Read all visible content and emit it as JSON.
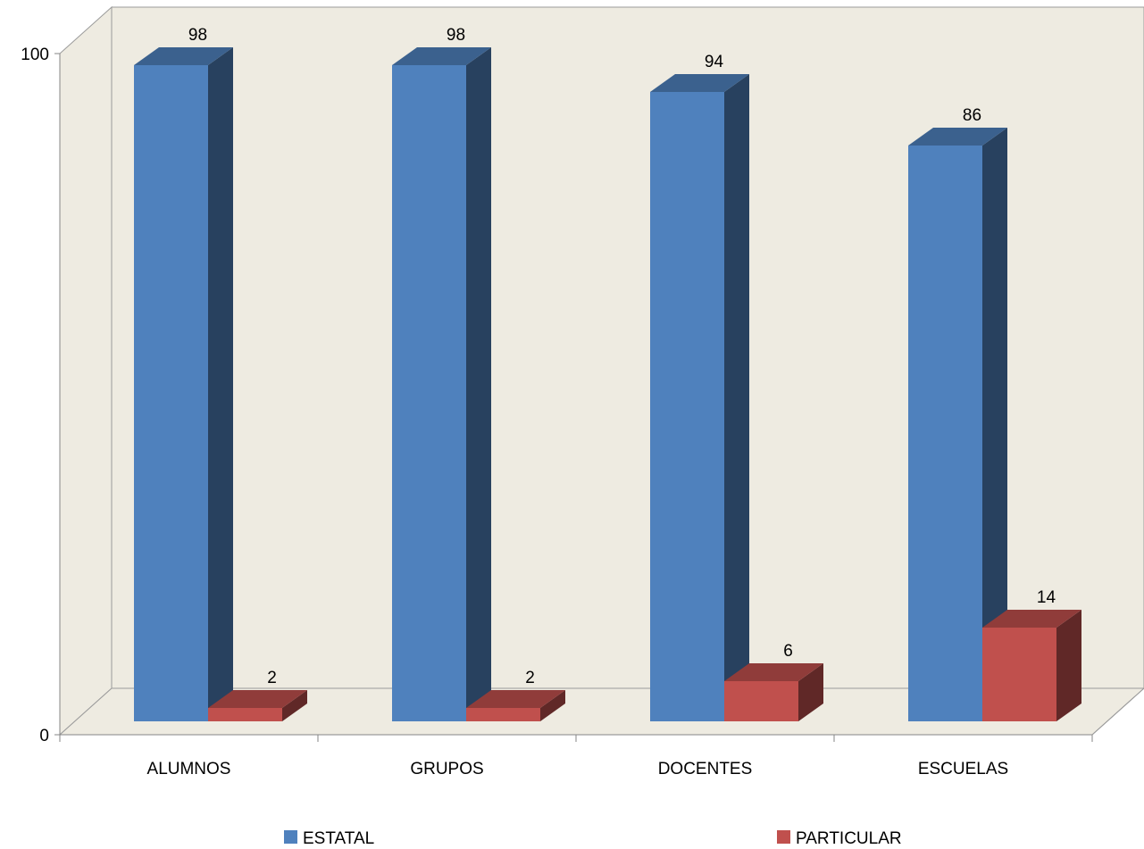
{
  "chart_data": {
    "type": "bar",
    "categories": [
      "ALUMNOS",
      "GRUPOS",
      "DOCENTES",
      "ESCUELAS"
    ],
    "series": [
      {
        "name": "ESTATAL",
        "values": [
          98,
          98,
          94,
          86
        ],
        "color": "#4F81BD"
      },
      {
        "name": "PARTICULAR",
        "values": [
          2,
          2,
          6,
          14
        ],
        "color": "#C0504D"
      }
    ],
    "y_ticks": [
      "0",
      "100"
    ],
    "ylim": [
      0,
      100
    ],
    "style": "3d-clustered-column",
    "grid": false,
    "legend_position": "bottom",
    "wall_color": "#EEEBE1"
  }
}
